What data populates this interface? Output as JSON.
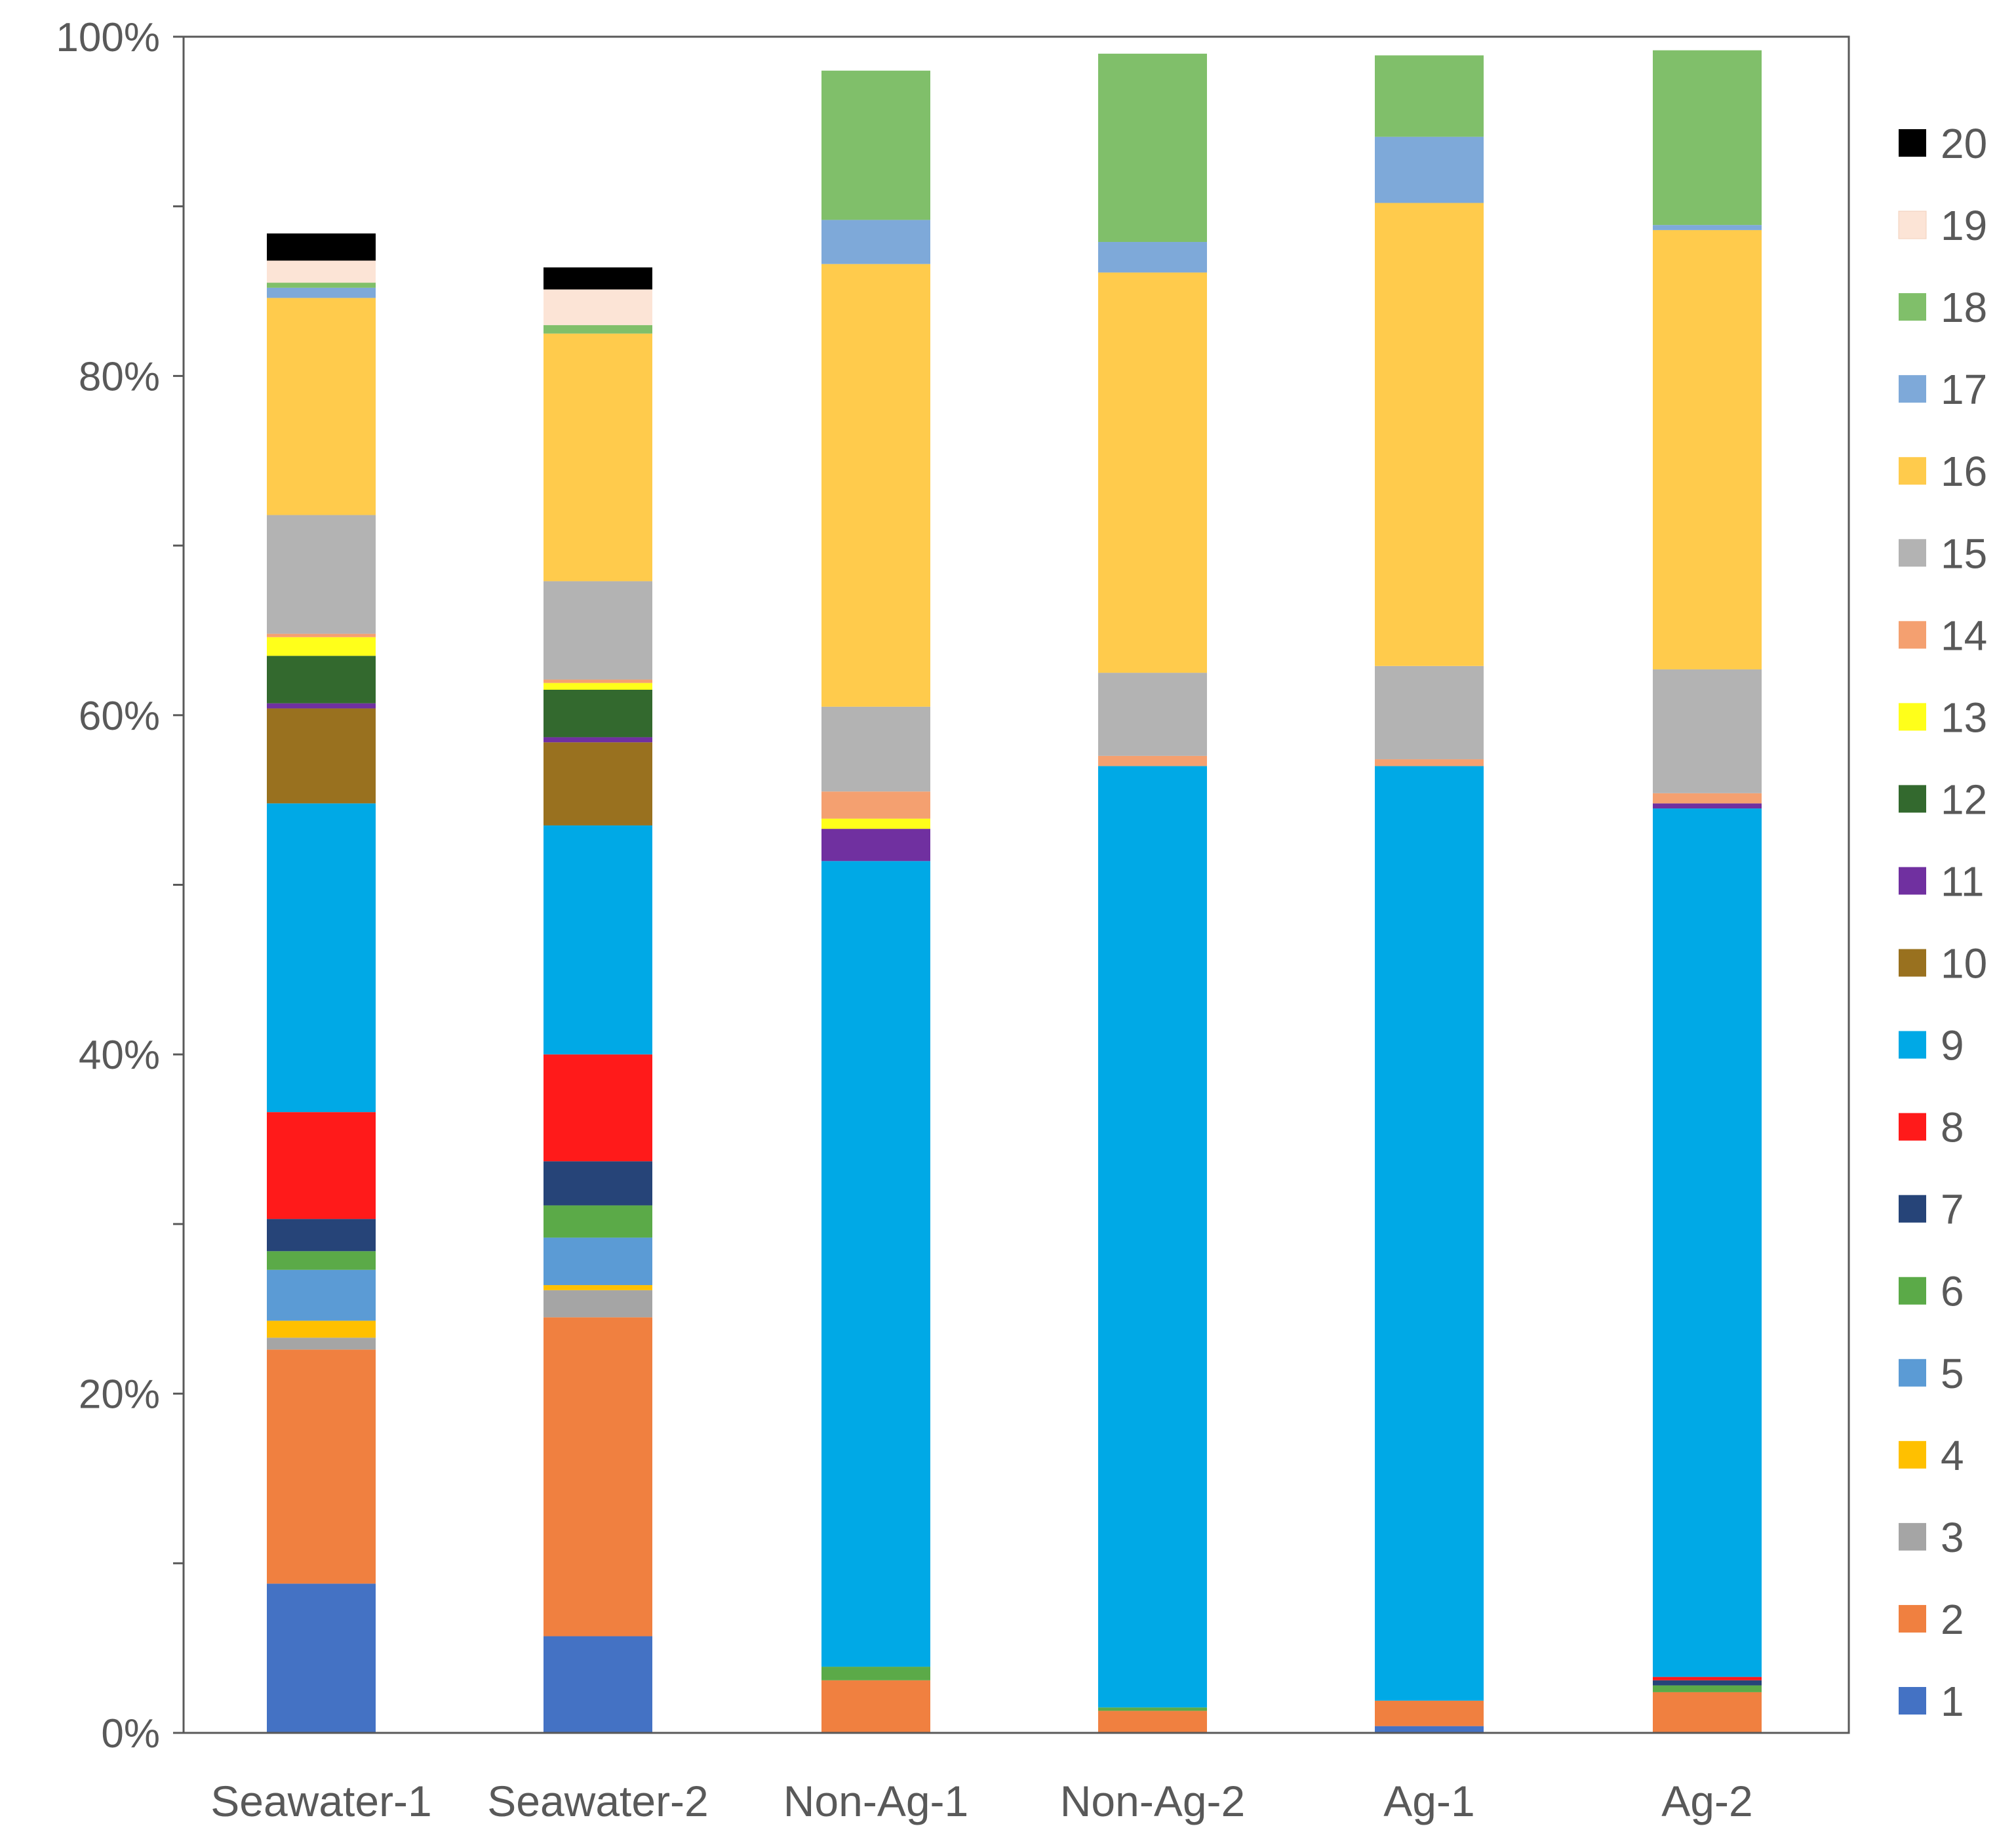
{
  "chart_data": {
    "type": "bar",
    "stacked": true,
    "categories": [
      "Seawater-1",
      "Seawater-2",
      "Non-Ag-1",
      "Non-Ag-2",
      "Ag-1",
      "Ag-2"
    ],
    "ylim": [
      0,
      100
    ],
    "y_ticks": [
      "0%",
      "20%",
      "40%",
      "60%",
      "80%",
      "100%"
    ],
    "y_tick_values": [
      0,
      20,
      40,
      60,
      80,
      100
    ],
    "legend_position": "right",
    "series": [
      {
        "name": "1",
        "color": "#4472C4",
        "values": [
          8.8,
          5.7,
          0,
          0,
          0.4,
          0
        ]
      },
      {
        "name": "2",
        "color": "#F08040",
        "values": [
          13.8,
          18.8,
          3.1,
          1.3,
          1.5,
          2.4
        ]
      },
      {
        "name": "3",
        "color": "#A5A5A5",
        "values": [
          0.7,
          1.6,
          0,
          0,
          0,
          0
        ]
      },
      {
        "name": "4",
        "color": "#FFC000",
        "values": [
          1.0,
          0.3,
          0,
          0,
          0,
          0
        ]
      },
      {
        "name": "5",
        "color": "#5B9BD5",
        "values": [
          3.0,
          2.8,
          0,
          0,
          0,
          0
        ]
      },
      {
        "name": "6",
        "color": "#5BAA48",
        "values": [
          1.1,
          1.9,
          0.8,
          0.2,
          0,
          0.4
        ]
      },
      {
        "name": "7",
        "color": "#264478",
        "values": [
          1.9,
          2.6,
          0,
          0,
          0,
          0.3
        ]
      },
      {
        "name": "8",
        "color": "#FF1A1A",
        "values": [
          6.3,
          6.3,
          0,
          0,
          0,
          0.2
        ]
      },
      {
        "name": "9",
        "color": "#00A9E6",
        "values": [
          18.2,
          13.5,
          47.5,
          55.5,
          55.1,
          51.2
        ]
      },
      {
        "name": "10",
        "color": "#99711F",
        "values": [
          5.6,
          4.9,
          0,
          0,
          0,
          0
        ]
      },
      {
        "name": "11",
        "color": "#7030A0",
        "values": [
          0.3,
          0.3,
          1.9,
          0,
          0,
          0.3
        ]
      },
      {
        "name": "12",
        "color": "#33692E",
        "values": [
          2.8,
          2.8,
          0,
          0,
          0,
          0
        ]
      },
      {
        "name": "13",
        "color": "#FFFF1A",
        "values": [
          1.1,
          0.4,
          0.6,
          0,
          0,
          0
        ]
      },
      {
        "name": "14",
        "color": "#F4A070",
        "values": [
          0.2,
          0.2,
          1.6,
          0.6,
          0.4,
          0.6
        ]
      },
      {
        "name": "15",
        "color": "#B3B3B3",
        "values": [
          7.0,
          5.8,
          5.0,
          4.9,
          5.5,
          7.3
        ]
      },
      {
        "name": "16",
        "color": "#FFCB4C",
        "values": [
          12.8,
          14.6,
          26.1,
          23.6,
          27.3,
          25.9
        ]
      },
      {
        "name": "17",
        "color": "#7EA9D9",
        "values": [
          0.6,
          0,
          2.6,
          1.8,
          3.9,
          0.3
        ]
      },
      {
        "name": "18",
        "color": "#80BF6A",
        "values": [
          0.3,
          0.5,
          8.8,
          11.1,
          4.8,
          10.3
        ]
      },
      {
        "name": "19",
        "color": "#FCE4D6",
        "values": [
          1.3,
          2.1,
          0,
          0,
          0,
          0
        ]
      },
      {
        "name": "20",
        "color": "#000000",
        "values": [
          1.6,
          1.3,
          0,
          0,
          0,
          0
        ]
      }
    ]
  }
}
